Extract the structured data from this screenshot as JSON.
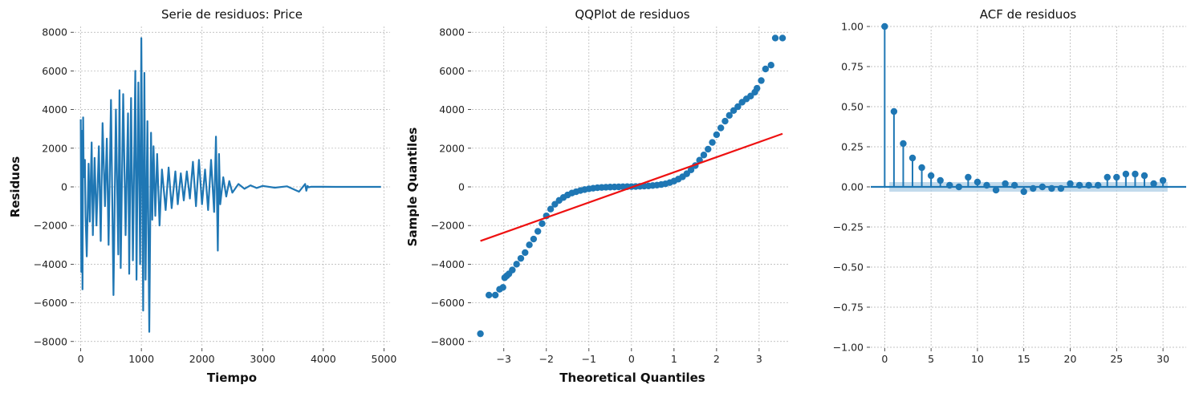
{
  "chart_data": [
    {
      "type": "line",
      "title": "Serie de residuos: Price",
      "xlabel": "Tiempo",
      "ylabel": "Residuos",
      "xlim": [
        -100,
        5100
      ],
      "ylim": [
        -8300,
        8300
      ],
      "xticks": [
        0,
        1000,
        2000,
        3000,
        4000,
        5000
      ],
      "xtick_labels": [
        "0",
        "1000",
        "2000",
        "3000",
        "4000",
        "5000"
      ],
      "yticks": [
        -8000,
        -6000,
        -4000,
        -2000,
        0,
        2000,
        4000,
        6000,
        8000
      ],
      "ytick_labels": [
        "−8000",
        "−6000",
        "−4000",
        "−2000",
        "0",
        "2000",
        "4000",
        "6000",
        "8000"
      ],
      "grid": true,
      "color": "#1f77b4",
      "x": [
        0,
        10,
        20,
        30,
        40,
        50,
        70,
        80,
        100,
        130,
        150,
        180,
        200,
        230,
        260,
        300,
        330,
        360,
        400,
        430,
        460,
        500,
        540,
        580,
        620,
        640,
        660,
        700,
        740,
        780,
        800,
        830,
        860,
        900,
        920,
        950,
        980,
        1000,
        1030,
        1050,
        1070,
        1100,
        1130,
        1160,
        1180,
        1200,
        1230,
        1260,
        1300,
        1340,
        1400,
        1450,
        1500,
        1560,
        1600,
        1650,
        1700,
        1750,
        1800,
        1850,
        1900,
        1950,
        2000,
        2050,
        2100,
        2150,
        2200,
        2230,
        2260,
        2280,
        2300,
        2350,
        2400,
        2450,
        2500,
        2600,
        2700,
        2800,
        2900,
        3000,
        3200,
        3400,
        3600,
        3700,
        3720,
        3740,
        3760,
        3800,
        4000,
        4200,
        4600,
        4950
      ],
      "y": [
        3500,
        -4400,
        2900,
        -5300,
        3600,
        500,
        1400,
        -1500,
        -3600,
        1200,
        -1800,
        2300,
        -2500,
        1500,
        -2000,
        2100,
        -2800,
        3300,
        -1000,
        2500,
        -3000,
        4500,
        -5600,
        4000,
        -3500,
        5000,
        -4200,
        4800,
        -2500,
        3800,
        -4500,
        4600,
        -3800,
        6000,
        -4800,
        5400,
        -4000,
        7700,
        -6400,
        5900,
        -4800,
        3400,
        -7500,
        2800,
        -1700,
        2100,
        -1500,
        1700,
        -2000,
        900,
        -1200,
        1000,
        -1100,
        800,
        -900,
        700,
        -700,
        800,
        -600,
        1300,
        -1000,
        1400,
        -900,
        900,
        -1200,
        1400,
        -1300,
        2600,
        -3300,
        1700,
        -900,
        500,
        -500,
        300,
        -300,
        150,
        -100,
        80,
        -60,
        50,
        -40,
        30,
        -250,
        150,
        -200,
        50,
        -20,
        10,
        5,
        0,
        0,
        0
      ]
    },
    {
      "type": "scatter",
      "title": "QQPlot de residuos",
      "xlabel": "Theoretical Quantiles",
      "ylabel": "Sample Quantiles",
      "xlim": [
        -3.75,
        3.7
      ],
      "ylim": [
        -8300,
        8300
      ],
      "xticks": [
        -3,
        -2,
        -1,
        0,
        1,
        2,
        3
      ],
      "xtick_labels": [
        "−3",
        "−2",
        "−1",
        "0",
        "1",
        "2",
        "3"
      ],
      "yticks": [
        -8000,
        -6000,
        -4000,
        -2000,
        0,
        2000,
        4000,
        6000,
        8000
      ],
      "ytick_labels": [
        "−8000",
        "−6000",
        "−4000",
        "−2000",
        "0",
        "2000",
        "4000",
        "6000",
        "8000"
      ],
      "grid": true,
      "point_color": "#1f77b4",
      "line_color": "#ee1111",
      "points": {
        "x": [
          -3.55,
          -3.35,
          -3.2,
          -3.1,
          -3.02,
          -2.98,
          -2.93,
          -2.88,
          -2.8,
          -2.7,
          -2.6,
          -2.5,
          -2.4,
          -2.3,
          -2.2,
          -2.1,
          -2.0,
          -1.9,
          -1.8,
          -1.7,
          -1.6,
          -1.5,
          -1.4,
          -1.3,
          -1.2,
          -1.1,
          -1.0,
          -0.9,
          -0.8,
          -0.7,
          -0.6,
          -0.5,
          -0.4,
          -0.3,
          -0.2,
          -0.1,
          0.0,
          0.1,
          0.2,
          0.3,
          0.4,
          0.5,
          0.6,
          0.7,
          0.8,
          0.9,
          1.0,
          1.1,
          1.2,
          1.3,
          1.4,
          1.5,
          1.6,
          1.7,
          1.8,
          1.9,
          2.0,
          2.1,
          2.2,
          2.3,
          2.4,
          2.5,
          2.6,
          2.7,
          2.8,
          2.9,
          2.95,
          3.05,
          3.15,
          3.28,
          3.38,
          3.55
        ],
        "y": [
          -7600,
          -5600,
          -5600,
          -5300,
          -5200,
          -4700,
          -4600,
          -4500,
          -4300,
          -4000,
          -3700,
          -3400,
          -3000,
          -2700,
          -2300,
          -1900,
          -1500,
          -1150,
          -900,
          -700,
          -550,
          -420,
          -320,
          -250,
          -190,
          -140,
          -100,
          -70,
          -45,
          -30,
          -20,
          -10,
          -5,
          0,
          5,
          10,
          15,
          20,
          30,
          40,
          50,
          70,
          90,
          120,
          160,
          220,
          300,
          400,
          520,
          680,
          880,
          1100,
          1380,
          1650,
          1950,
          2300,
          2700,
          3050,
          3400,
          3700,
          3950,
          4150,
          4380,
          4550,
          4700,
          4900,
          5100,
          5500,
          6100,
          6300,
          7700,
          7700
        ]
      },
      "fit_line": {
        "x": [
          -3.55,
          3.55
        ],
        "y": [
          -2800,
          2750
        ]
      }
    },
    {
      "type": "stem",
      "title": "ACF de residuos",
      "xlabel": "",
      "ylabel": "",
      "xlim": [
        -1.5,
        32.5
      ],
      "ylim": [
        -1.0,
        1.0
      ],
      "xticks": [
        0,
        5,
        10,
        15,
        20,
        25,
        30
      ],
      "xtick_labels": [
        "0",
        "5",
        "10",
        "15",
        "20",
        "25",
        "30"
      ],
      "yticks": [
        -1.0,
        -0.75,
        -0.5,
        -0.25,
        0.0,
        0.25,
        0.5,
        0.75,
        1.0
      ],
      "ytick_labels": [
        "−1.00",
        "−0.75",
        "−0.50",
        "−0.25",
        "0.00",
        "0.25",
        "0.50",
        "0.75",
        "1.00"
      ],
      "grid": true,
      "color": "#1f77b4",
      "band_color": "#aecde6",
      "lags": [
        0,
        1,
        2,
        3,
        4,
        5,
        6,
        7,
        8,
        9,
        10,
        11,
        12,
        13,
        14,
        15,
        16,
        17,
        18,
        19,
        20,
        21,
        22,
        23,
        24,
        25,
        26,
        27,
        28,
        29,
        30
      ],
      "values": [
        1.0,
        0.47,
        0.27,
        0.18,
        0.12,
        0.07,
        0.04,
        0.01,
        0.0,
        0.06,
        0.03,
        0.01,
        -0.02,
        0.02,
        0.01,
        -0.03,
        -0.01,
        0.0,
        -0.01,
        -0.01,
        0.02,
        0.01,
        0.01,
        0.01,
        0.06,
        0.06,
        0.08,
        0.08,
        0.07,
        0.02,
        0.04
      ],
      "conf_band": 0.03
    }
  ]
}
